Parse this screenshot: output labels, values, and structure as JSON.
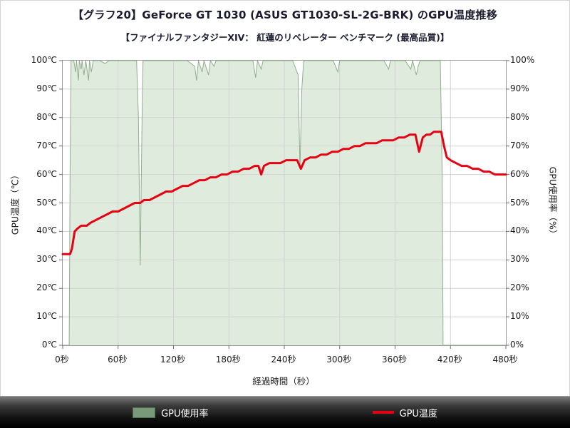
{
  "header": {
    "title": "【グラフ20】GeForce GT 1030 (ASUS GT1030-SL-2G-BRK) のGPU温度推移",
    "subtitle": "【ファイナルファンタジーXIV： 紅蓮のリベレーター ベンチマーク (最高品質)】"
  },
  "axes": {
    "left_title": "GPU温度（℃）",
    "right_title": "GPU使用率（%）",
    "x_title": "経過時間（秒）",
    "left_ticks": [
      "100℃",
      "90℃",
      "80℃",
      "70℃",
      "60℃",
      "50℃",
      "40℃",
      "30℃",
      "20℃",
      "10℃",
      "0℃"
    ],
    "right_ticks": [
      "100%",
      "90%",
      "80%",
      "70%",
      "60%",
      "50%",
      "40%",
      "30%",
      "20%",
      "10%",
      "0%"
    ],
    "x_ticks": [
      "0秒",
      "60秒",
      "120秒",
      "180秒",
      "240秒",
      "300秒",
      "360秒",
      "420秒",
      "480秒"
    ]
  },
  "legend": {
    "usage_label": "GPU使用率",
    "temp_label": "GPU温度"
  },
  "colors": {
    "temp_line": "#e60012",
    "usage_fill": "#dcead9",
    "usage_stroke": "#8fae8d",
    "legend_usage_swatch": "#7a997a",
    "legend_usage_border": "#4e6e4c",
    "grid": "#d2d2d2",
    "tick": "#6e6e6e"
  },
  "chart_data": {
    "type": "line",
    "title": "GeForce GT 1030 (ASUS GT1030-SL-2G-BRK) のGPU温度推移",
    "xlabel": "経過時間（秒）",
    "x_range": [
      0,
      480
    ],
    "x_tick_step": 60,
    "y_left": {
      "label": "GPU温度（℃）",
      "range": [
        0,
        100
      ]
    },
    "y_right": {
      "label": "GPU使用率（%）",
      "range": [
        0,
        100
      ]
    },
    "grid": true,
    "legend_position": "bottom",
    "series": [
      {
        "name": "GPU使用率",
        "axis": "right",
        "type": "area",
        "points": [
          [
            0,
            0
          ],
          [
            7,
            0
          ],
          [
            8,
            62
          ],
          [
            9,
            100
          ],
          [
            12,
            100
          ],
          [
            14,
            96
          ],
          [
            15,
            100
          ],
          [
            17,
            93
          ],
          [
            18,
            100
          ],
          [
            20,
            97
          ],
          [
            21,
            100
          ],
          [
            23,
            95
          ],
          [
            25,
            100
          ],
          [
            28,
            93
          ],
          [
            29,
            100
          ],
          [
            31,
            96
          ],
          [
            33,
            100
          ],
          [
            40,
            100
          ],
          [
            46,
            99
          ],
          [
            50,
            100
          ],
          [
            58,
            100
          ],
          [
            66,
            100
          ],
          [
            74,
            100
          ],
          [
            80,
            100
          ],
          [
            82,
            80
          ],
          [
            84,
            28
          ],
          [
            86,
            80
          ],
          [
            87,
            100
          ],
          [
            95,
            100
          ],
          [
            103,
            100
          ],
          [
            111,
            100
          ],
          [
            119,
            100
          ],
          [
            127,
            100
          ],
          [
            135,
            100
          ],
          [
            143,
            98
          ],
          [
            145,
            93
          ],
          [
            147,
            100
          ],
          [
            151,
            96
          ],
          [
            153,
            100
          ],
          [
            158,
            95
          ],
          [
            160,
            100
          ],
          [
            164,
            98
          ],
          [
            166,
            100
          ],
          [
            174,
            100
          ],
          [
            182,
            100
          ],
          [
            190,
            100
          ],
          [
            198,
            100
          ],
          [
            206,
            100
          ],
          [
            209,
            94
          ],
          [
            211,
            100
          ],
          [
            215,
            97
          ],
          [
            217,
            100
          ],
          [
            225,
            100
          ],
          [
            233,
            100
          ],
          [
            241,
            100
          ],
          [
            249,
            100
          ],
          [
            255,
            95
          ],
          [
            257,
            62
          ],
          [
            259,
            90
          ],
          [
            261,
            100
          ],
          [
            269,
            100
          ],
          [
            277,
            100
          ],
          [
            285,
            100
          ],
          [
            293,
            100
          ],
          [
            298,
            96
          ],
          [
            300,
            100
          ],
          [
            308,
            100
          ],
          [
            316,
            100
          ],
          [
            324,
            100
          ],
          [
            332,
            100
          ],
          [
            340,
            100
          ],
          [
            348,
            100
          ],
          [
            353,
            97
          ],
          [
            355,
            100
          ],
          [
            363,
            100
          ],
          [
            371,
            100
          ],
          [
            377,
            97
          ],
          [
            379,
            100
          ],
          [
            383,
            95
          ],
          [
            385,
            98
          ],
          [
            387,
            100
          ],
          [
            395,
            100
          ],
          [
            403,
            100
          ],
          [
            409,
            100
          ],
          [
            411,
            60
          ],
          [
            412,
            0
          ],
          [
            480,
            0
          ]
        ]
      },
      {
        "name": "GPU温度",
        "axis": "left",
        "type": "line",
        "points": [
          [
            0,
            32
          ],
          [
            4,
            32
          ],
          [
            8,
            32
          ],
          [
            10,
            34
          ],
          [
            13,
            40
          ],
          [
            16,
            41
          ],
          [
            20,
            42
          ],
          [
            26,
            42
          ],
          [
            30,
            43
          ],
          [
            36,
            44
          ],
          [
            42,
            45
          ],
          [
            48,
            46
          ],
          [
            54,
            47
          ],
          [
            60,
            47
          ],
          [
            66,
            48
          ],
          [
            72,
            49
          ],
          [
            78,
            50
          ],
          [
            84,
            50
          ],
          [
            88,
            51
          ],
          [
            94,
            51
          ],
          [
            100,
            52
          ],
          [
            106,
            53
          ],
          [
            112,
            54
          ],
          [
            118,
            54
          ],
          [
            124,
            55
          ],
          [
            130,
            56
          ],
          [
            136,
            56
          ],
          [
            142,
            57
          ],
          [
            148,
            58
          ],
          [
            154,
            58
          ],
          [
            160,
            59
          ],
          [
            166,
            59
          ],
          [
            172,
            60
          ],
          [
            178,
            60
          ],
          [
            184,
            61
          ],
          [
            190,
            61
          ],
          [
            196,
            62
          ],
          [
            202,
            62
          ],
          [
            208,
            63
          ],
          [
            212,
            63
          ],
          [
            215,
            60
          ],
          [
            218,
            63
          ],
          [
            224,
            64
          ],
          [
            230,
            64
          ],
          [
            236,
            64
          ],
          [
            242,
            65
          ],
          [
            248,
            65
          ],
          [
            254,
            65
          ],
          [
            258,
            62
          ],
          [
            262,
            65
          ],
          [
            268,
            66
          ],
          [
            274,
            66
          ],
          [
            280,
            67
          ],
          [
            286,
            67
          ],
          [
            292,
            68
          ],
          [
            298,
            68
          ],
          [
            304,
            69
          ],
          [
            310,
            69
          ],
          [
            316,
            70
          ],
          [
            322,
            70
          ],
          [
            328,
            71
          ],
          [
            334,
            71
          ],
          [
            340,
            71
          ],
          [
            346,
            72
          ],
          [
            352,
            72
          ],
          [
            358,
            72
          ],
          [
            364,
            73
          ],
          [
            370,
            73
          ],
          [
            376,
            74
          ],
          [
            382,
            74
          ],
          [
            386,
            68
          ],
          [
            390,
            73
          ],
          [
            394,
            74
          ],
          [
            398,
            74
          ],
          [
            402,
            75
          ],
          [
            406,
            75
          ],
          [
            410,
            75
          ],
          [
            413,
            70
          ],
          [
            416,
            66
          ],
          [
            420,
            65
          ],
          [
            426,
            64
          ],
          [
            432,
            63
          ],
          [
            438,
            63
          ],
          [
            444,
            62
          ],
          [
            450,
            62
          ],
          [
            456,
            61
          ],
          [
            462,
            61
          ],
          [
            468,
            60
          ],
          [
            474,
            60
          ],
          [
            480,
            60
          ]
        ]
      }
    ]
  }
}
